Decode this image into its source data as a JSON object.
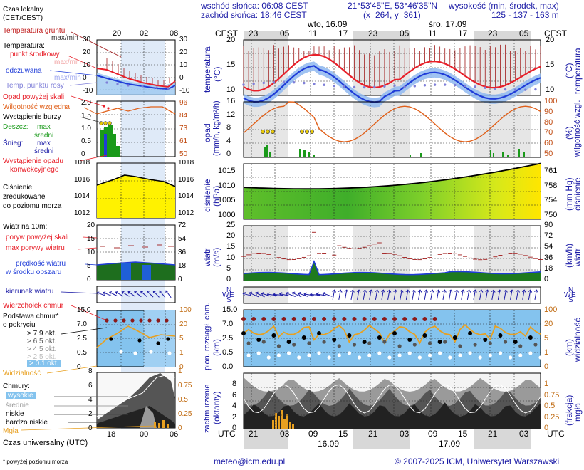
{
  "header": {
    "sunrise": "wschód słońca: 06:08 CEST",
    "sunset": "zachód słońca: 18:46 CEST",
    "coords": "21°53'45\"E, 53°46'35\"N",
    "grid": "(x=264, y=361)",
    "altitude_title": "wysokość (min, środek, max)",
    "altitude_values": "125 - 137 - 163 m"
  },
  "legend": {
    "time_title": "Czas lokalny",
    "time_sub": "(CET/CEST)",
    "soil_temp": "Temperatura gruntu",
    "soil_maxmin": "max/min",
    "temperature": "Temperatura:",
    "mid_point": "punkt środkowy",
    "maxmin": "max/min",
    "perceived": "odczuwana",
    "maxmin2": "max/min",
    "dew_point": "Temp. punktu rosy",
    "precip_over": "Opad powyżej skali",
    "rel_humidity": "Wilgotność względna",
    "storm": "Wystąpienie burzy",
    "rain": "Deszcz:",
    "snow": "Śnieg:",
    "max": "max",
    "mean": "średni",
    "max2": "max",
    "mean2": "średni",
    "convective": "Wystąpienie opadu",
    "convective2": "konwekcyjnego",
    "pressure1": "Ciśnienie",
    "pressure2": "zredukowane",
    "pressure3": "do poziomu morza",
    "wind_title": "Wiatr na 10m:",
    "gust_over": "poryw powyżej skali",
    "gust_max": "max porywy wiatru",
    "wind_speed": "prędkość wiatru",
    "wind_speed2": "w środku obszaru",
    "wind_dir": "kierunek wiatru",
    "cloud_top": "Wierzchołek chmur",
    "cloud_base": "Podstawa chmur*",
    "cloud_base2": "o pokryciu",
    "okt1": "> 7.9 okt.",
    "okt2": "> 6.5 okt.",
    "okt3": "> 4.5 okt.",
    "okt4": "> 2.5 okt.",
    "okt5": "> 0.1 okt.",
    "visibility": "Widzialność",
    "clouds": "Chmury:",
    "high": "wysokie",
    "middle": "średnie",
    "low": "niskie",
    "very_low": "bardzo niskie",
    "fog": "Mgła",
    "utc_title": "Czas uniwersalny (UTC)",
    "footnote": "* powyżej poziomu morza"
  },
  "mini": {
    "top_ticks": [
      "20",
      "02",
      "08"
    ],
    "bottom_ticks": [
      "18",
      "00",
      "06"
    ],
    "temp_left": [
      "30",
      "20",
      "10",
      "0",
      "-10"
    ],
    "temp_right": [
      "30",
      "20",
      "10",
      "0",
      "-10"
    ],
    "precip_left": [
      "2.0",
      "1.5",
      "1.0",
      "0.5",
      "0"
    ],
    "precip_right": [
      "96",
      "84",
      "73",
      "61",
      "50"
    ],
    "press_left": [
      "1018",
      "1016",
      "1014",
      "1012"
    ],
    "press_right": [
      "1018",
      "1016",
      "1014",
      "1012"
    ],
    "wind_left": [
      "20",
      "15",
      "10",
      "5",
      "0"
    ],
    "wind_right": [
      "72",
      "54",
      "36",
      "18",
      "0"
    ],
    "cloud_left": [
      "15.0",
      "7.0",
      "2.5",
      "0.5",
      "0"
    ],
    "cloud_right": [
      "100",
      "20",
      "5",
      "1",
      "0"
    ],
    "cl_left": [
      "8",
      "6",
      "4",
      "2",
      "0"
    ],
    "cl_right": [
      "1",
      "0.75",
      "0.5",
      "0.25",
      "0"
    ]
  },
  "main": {
    "cest_label": "CEST",
    "utc_label": "UTC",
    "top_hours": [
      "23",
      "05",
      "11",
      "17",
      "23",
      "05",
      "11",
      "17",
      "23",
      "05"
    ],
    "bottom_hours": [
      "21",
      "03",
      "09",
      "15",
      "21",
      "03",
      "09",
      "15",
      "21",
      "03"
    ],
    "day_top": [
      "wto, 16.09",
      "śro, 17.09"
    ],
    "day_bottom": [
      "16.09",
      "17.09"
    ],
    "temp_ticks": [
      "20",
      "15",
      "10"
    ],
    "temp_unit_left": "temperatura",
    "temp_unit_left2": "(°C)",
    "temp_unit_right": "(°C)",
    "temp_unit_right2": "temperatura",
    "precip_ticks": [
      "16",
      "12",
      "8",
      "4",
      "0"
    ],
    "hum_ticks": [
      "100",
      "90",
      "80",
      "70",
      "60",
      "50"
    ],
    "precip_unit": "opad",
    "precip_unit2": "(mm/h, kg/m²/h)",
    "hum_unit": "(%)",
    "hum_unit2": "wilgotność wzgl.",
    "press_ticks": [
      "1015",
      "1010",
      "1005",
      "1000"
    ],
    "press_right_ticks": [
      "761",
      "758",
      "754",
      "750"
    ],
    "press_unit": "ciśnienie",
    "press_unit2": "(hPa)",
    "press_unit_r": "(mm Hg)",
    "press_unit_r2": "ciśnienie",
    "wind_ticks": [
      "25",
      "20",
      "15",
      "10",
      "5",
      "0"
    ],
    "wind_right_ticks": [
      "90",
      "72",
      "54",
      "36",
      "18",
      "0"
    ],
    "wind_unit": "wiatr",
    "wind_unit2": "(m/s)",
    "wind_unit_r": "(km/h)",
    "wind_unit_r2": "wiatr",
    "compass": [
      "N",
      "W",
      "E",
      "S"
    ],
    "cloud_ticks": [
      "15.0",
      "7.0",
      "2.5",
      "0.5",
      "0.0"
    ],
    "vis_ticks": [
      "100",
      "20",
      "5",
      "1",
      "0"
    ],
    "cloud_unit": "pion. rozciągł. chm.",
    "cloud_unit2": "(km)",
    "vis_unit": "(km)",
    "vis_unit2": "widzialność",
    "cl_ticks": [
      "8",
      "6",
      "4",
      "2",
      "0"
    ],
    "fog_ticks": [
      "1",
      "0.75",
      "0.5",
      "0.25",
      "0"
    ],
    "cl_unit": "zachmurzenie",
    "cl_unit2": "(oktanty)",
    "fog_unit": "(frakcja)",
    "fog_unit2": "mgła"
  },
  "footer": {
    "email": "meteo@icm.edu.pl",
    "copyright": "© 2007-2025 ICM, Uniwersytet Warszawski"
  },
  "colors": {
    "temp": "#e8202a",
    "perceived": "#1f3cd8",
    "dew": "#7f7fd8",
    "humidity": "#e0601a",
    "rain": "#1a9a1a",
    "pressure_high": "#ffe600",
    "pressure_low": "#3fae2a",
    "wind_dark": "#1e6e1e",
    "wind_blue": "#1f5fd8",
    "cloud_bg": "#84c3ee",
    "title_blue": "#1a1aa6"
  }
}
